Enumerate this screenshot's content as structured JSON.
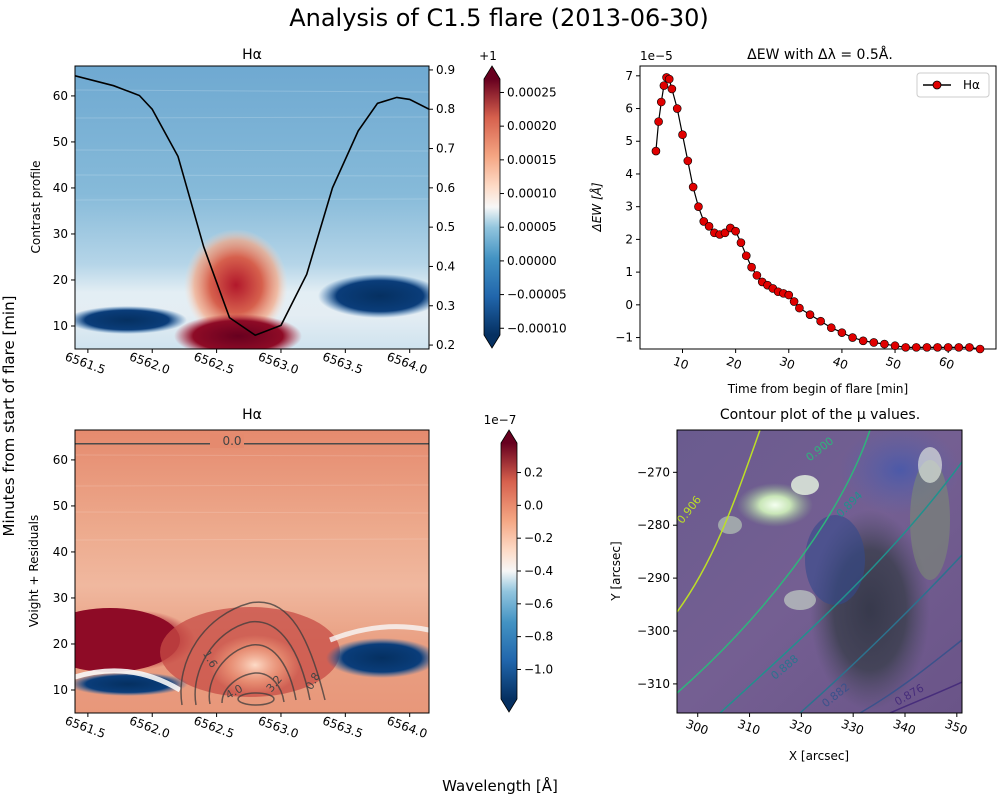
{
  "figure": {
    "suptitle": "Analysis of C1.5 flare (2013-06-30)",
    "shared_xlabel": "Wavelength [Å]",
    "shared_ylabel": "Minutes from start of flare [min]"
  },
  "colors": {
    "rdbu_dark_red": "#67001f",
    "rdbu_red": "#d6604d",
    "rdbu_white": "#f7f7f7",
    "rdbu_blue": "#4393c3",
    "rdbu_dark_blue": "#053061",
    "ew_marker": "#e00000",
    "mu_low": "#440154",
    "mu_high": "#dde318"
  },
  "chart_data": [
    {
      "type": "heatmap",
      "id": "halpha_contrast",
      "title": "Hα",
      "ylabel": "Contrast profile",
      "x_ticks": [
        "6561.5",
        "6562.0",
        "6562.5",
        "6563.0",
        "6563.5",
        "6564.0"
      ],
      "x_range": [
        6561.4,
        6564.15
      ],
      "y_ticks": [
        10,
        20,
        30,
        40,
        50,
        60
      ],
      "y_range": [
        5,
        66.5
      ],
      "colormap": "RdBu_r",
      "colorbar": {
        "offset_label": "+1",
        "ticks": [
          "0.00025",
          "0.00020",
          "0.00015",
          "0.00010",
          "0.00005",
          "0.00000",
          "−0.00005",
          "−0.00010"
        ],
        "range": [
          -0.00011,
          0.00027
        ]
      },
      "twin_axis": {
        "ticks": [
          "0.2",
          "0.3",
          "0.4",
          "0.5",
          "0.6",
          "0.7",
          "0.8",
          "0.9"
        ],
        "range": [
          0.19,
          0.91
        ],
        "profile": {
          "wavelength": [
            6561.4,
            6561.7,
            6561.9,
            6562.0,
            6562.2,
            6562.4,
            6562.6,
            6562.8,
            6563.0,
            6563.2,
            6563.4,
            6563.6,
            6563.75,
            6563.9,
            6564.0,
            6564.15
          ],
          "value": [
            0.885,
            0.86,
            0.835,
            0.8,
            0.68,
            0.45,
            0.27,
            0.225,
            0.25,
            0.38,
            0.6,
            0.745,
            0.815,
            0.83,
            0.825,
            0.8
          ]
        }
      }
    },
    {
      "type": "scatter",
      "id": "delta_ew",
      "title": "ΔEW with Δλ = 0.5Å.",
      "xlabel": "Time from begin of flare [min]",
      "ylabel": "ΔEW [Å]",
      "y_scale_label": "1e−5",
      "x_ticks": [
        10,
        20,
        30,
        40,
        50,
        60
      ],
      "x_range": [
        2,
        69
      ],
      "y_ticks": [
        -1,
        0,
        1,
        2,
        3,
        4,
        5,
        6,
        7
      ],
      "y_range": [
        -1.35,
        7.3
      ],
      "legend": {
        "position": "top-right",
        "label": "Hα"
      },
      "series": [
        {
          "name": "Hα",
          "x": [
            5,
            5.5,
            6,
            6.5,
            7,
            7.5,
            8,
            9,
            10,
            11,
            12,
            13,
            14,
            15,
            16,
            17,
            18,
            19,
            20,
            21,
            22,
            23,
            24,
            25,
            26,
            27,
            28,
            29,
            30,
            31,
            32,
            34,
            36,
            38,
            40,
            42,
            44,
            46,
            48,
            50,
            52,
            54,
            56,
            58,
            60,
            62,
            64,
            66
          ],
          "y": [
            4.7,
            5.6,
            6.2,
            6.7,
            6.95,
            6.9,
            6.6,
            6.0,
            5.2,
            4.4,
            3.6,
            3.0,
            2.55,
            2.4,
            2.2,
            2.15,
            2.2,
            2.35,
            2.25,
            1.9,
            1.5,
            1.15,
            0.9,
            0.7,
            0.6,
            0.5,
            0.4,
            0.35,
            0.3,
            0.1,
            -0.1,
            -0.3,
            -0.5,
            -0.7,
            -0.85,
            -1.0,
            -1.1,
            -1.15,
            -1.2,
            -1.25,
            -1.3,
            -1.3,
            -1.3,
            -1.3,
            -1.3,
            -1.3,
            -1.3,
            -1.35
          ]
        }
      ]
    },
    {
      "type": "heatmap",
      "id": "voight_residuals",
      "title": "Hα",
      "ylabel": "Voight + Residuals",
      "x_ticks": [
        "6561.5",
        "6562.0",
        "6562.5",
        "6563.0",
        "6563.5",
        "6564.0"
      ],
      "x_range": [
        6561.4,
        6564.15
      ],
      "y_ticks": [
        10,
        20,
        30,
        40,
        50,
        60
      ],
      "y_range": [
        5,
        66.5
      ],
      "colormap": "RdBu_r",
      "colorbar": {
        "offset_label": "1e−7",
        "ticks": [
          "0.2",
          "0.0",
          "−0.2",
          "−0.4",
          "−0.6",
          "−0.8",
          "−1.0"
        ],
        "range": [
          -1.18,
          0.38
        ]
      },
      "contours": {
        "labels": [
          "0.0",
          "1.6",
          "3.2",
          "0.8",
          "4.0"
        ],
        "zero_line_time": 63.5
      }
    },
    {
      "type": "heatmap",
      "id": "mu_contour",
      "title": "Contour plot of the μ values.",
      "xlabel": "X [arcsec]",
      "ylabel": "Y [arcsec]",
      "x_ticks": [
        300,
        310,
        320,
        330,
        340,
        350
      ],
      "x_range": [
        296,
        351
      ],
      "y_ticks": [
        -270,
        -280,
        -290,
        -300,
        -310
      ],
      "y_range": [
        -315.5,
        -262
      ],
      "contour_levels": [
        "0.906",
        "0.900",
        "0.894",
        "0.888",
        "0.882",
        "0.876"
      ]
    }
  ]
}
